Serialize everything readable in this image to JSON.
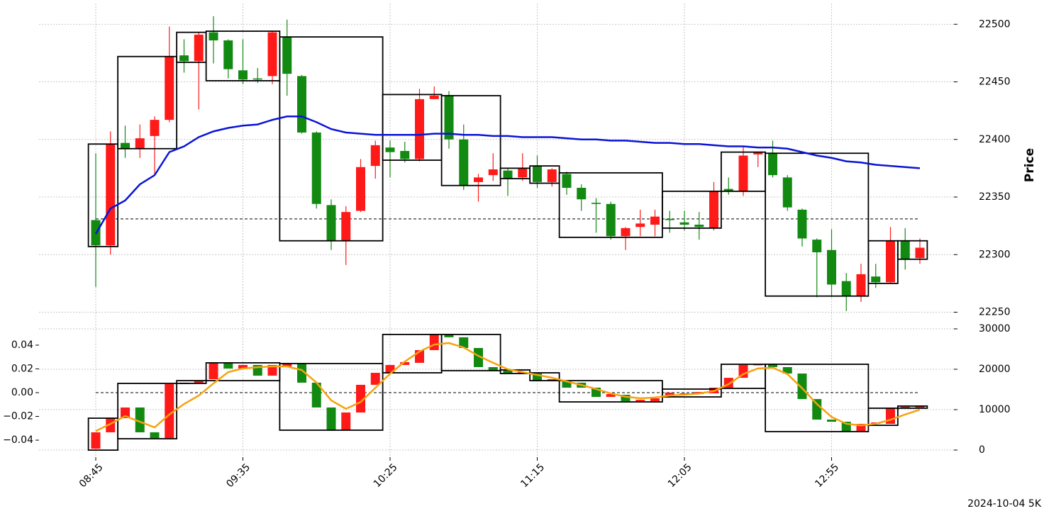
{
  "chart_data": [
    {
      "type": "candlestick",
      "ylabel": "Price",
      "ylim": [
        22238,
        22518
      ],
      "yticks": [
        22250,
        22300,
        22350,
        22400,
        22450,
        22500
      ],
      "grid": true,
      "up_color": "#ff1a1a",
      "down_color": "#128a12",
      "open": [
        22330,
        22308,
        22397,
        22392,
        22403,
        22417,
        22473,
        22468,
        22493,
        22486,
        22460,
        22453,
        22455,
        22489,
        22455,
        22406,
        22343,
        22312,
        22338,
        22377,
        22393,
        22390,
        22383,
        22435,
        22438,
        22400,
        22363,
        22369,
        22373,
        22367,
        22377,
        22363,
        22370,
        22358,
        22345,
        22344,
        22316,
        22324,
        22326,
        22331,
        22328,
        22326,
        22323,
        22357,
        22355,
        22387,
        22388,
        22367,
        22339,
        22313,
        22304,
        22277,
        22264,
        22281,
        22276,
        22312,
        22297
      ],
      "high": [
        22388,
        22407,
        22412,
        22413,
        22420,
        22498,
        22487,
        22493,
        22507,
        22487,
        22487,
        22462,
        22494,
        22504,
        22456,
        22407,
        22348,
        22342,
        22383,
        22399,
        22399,
        22398,
        22444,
        22446,
        22442,
        22413,
        22370,
        22388,
        22375,
        22388,
        22386,
        22375,
        22372,
        22361,
        22349,
        22346,
        22324,
        22339,
        22339,
        22338,
        22338,
        22337,
        22363,
        22367,
        22394,
        22389,
        22399,
        22369,
        22340,
        22314,
        22322,
        22284,
        22292,
        22292,
        22324,
        22323,
        22314
      ],
      "low": [
        22272,
        22300,
        22384,
        22384,
        22370,
        22415,
        22458,
        22426,
        22466,
        22453,
        22448,
        22449,
        22448,
        22438,
        22405,
        22340,
        22304,
        22291,
        22337,
        22366,
        22367,
        22380,
        22381,
        22435,
        22392,
        22356,
        22346,
        22364,
        22351,
        22364,
        22358,
        22359,
        22352,
        22338,
        22319,
        22313,
        22304,
        22316,
        22316,
        22319,
        22321,
        22313,
        22321,
        22352,
        22351,
        22376,
        22367,
        22338,
        22307,
        22263,
        22263,
        22251,
        22259,
        22271,
        22275,
        22287,
        22292
      ],
      "close": [
        22308,
        22396,
        22392,
        22401,
        22417,
        22472,
        22468,
        22491,
        22486,
        22461,
        22452,
        22452,
        22493,
        22457,
        22406,
        22344,
        22312,
        22337,
        22376,
        22395,
        22389,
        22383,
        22435,
        22438,
        22400,
        22360,
        22367,
        22374,
        22366,
        22375,
        22363,
        22374,
        22358,
        22348,
        22344,
        22316,
        22323,
        22327,
        22333,
        22330,
        22326,
        22324,
        22355,
        22355,
        22386,
        22389,
        22369,
        22341,
        22314,
        22302,
        22274,
        22264,
        22283,
        22276,
        22312,
        22296,
        22306
      ],
      "ma": {
        "color": "#0a14d6",
        "values": [
          22318,
          22340,
          22347,
          22361,
          22369,
          22389,
          22394,
          22402,
          22407,
          22410,
          22412,
          22413,
          22417,
          22420,
          22420,
          22415,
          22409,
          22406,
          22405,
          22404,
          22404,
          22404,
          22404,
          22405,
          22405,
          22404,
          22404,
          22403,
          22403,
          22402,
          22402,
          22402,
          22401,
          22400,
          22400,
          22399,
          22399,
          22398,
          22397,
          22397,
          22396,
          22396,
          22395,
          22394,
          22394,
          22393,
          22393,
          22392,
          22389,
          22386,
          22384,
          22381,
          22380,
          22378,
          22377,
          22376,
          22375
        ]
      },
      "reference_line": 22331,
      "boxes": [
        {
          "start": 0,
          "end": 1,
          "high": 22396,
          "low": 22307
        },
        {
          "start": 2,
          "end": 5,
          "high": 22472,
          "low": 22392
        },
        {
          "start": 6,
          "end": 7,
          "high": 22493,
          "low": 22467
        },
        {
          "start": 8,
          "end": 12,
          "high": 22494,
          "low": 22451
        },
        {
          "start": 13,
          "end": 19,
          "high": 22489,
          "low": 22312
        },
        {
          "start": 20,
          "end": 23,
          "high": 22439,
          "low": 22382
        },
        {
          "start": 24,
          "end": 27,
          "high": 22438,
          "low": 22360
        },
        {
          "start": 28,
          "end": 29,
          "high": 22375,
          "low": 22366
        },
        {
          "start": 30,
          "end": 31,
          "high": 22377,
          "low": 22362
        },
        {
          "start": 32,
          "end": 38,
          "high": 22371,
          "low": 22315
        },
        {
          "start": 39,
          "end": 42,
          "high": 22355,
          "low": 22323
        },
        {
          "start": 43,
          "end": 45,
          "high": 22389,
          "low": 22355
        },
        {
          "start": 46,
          "end": 52,
          "high": 22388,
          "low": 22264
        },
        {
          "start": 53,
          "end": 54,
          "high": 22312,
          "low": 22275
        },
        {
          "start": 55,
          "end": 56,
          "high": 22312,
          "low": 22296
        }
      ]
    },
    {
      "type": "candlestick",
      "categories": [
        "08:45",
        null,
        null,
        null,
        null,
        null,
        null,
        null,
        null,
        null,
        "09:35",
        null,
        null,
        null,
        null,
        null,
        null,
        null,
        null,
        null,
        "10:25",
        null,
        null,
        null,
        null,
        null,
        null,
        null,
        null,
        null,
        "11:15",
        null,
        null,
        null,
        null,
        null,
        null,
        null,
        null,
        null,
        "12:05",
        null,
        null,
        null,
        null,
        null,
        null,
        null,
        null,
        null,
        "12:55",
        null,
        null,
        null,
        null,
        null,
        null
      ],
      "ylim": [
        -0.0543,
        0.0549
      ],
      "yticks": [
        {
          "value": -0.04,
          "label": "−0.04"
        },
        {
          "value": -0.02,
          "label": "−0.02"
        },
        {
          "value": 0,
          "label": "0.00"
        },
        0.02,
        0.04
      ],
      "y2lim": [
        -1754,
        30351
      ],
      "y2ticks": [
        0,
        10000,
        20000,
        30000
      ],
      "grid": true,
      "up_color": "#ff1a1a",
      "down_color": "#128a12",
      "open": [
        -0.0472,
        -0.0334,
        -0.0215,
        -0.0125,
        -0.0334,
        -0.0382,
        0.0072,
        0.0084,
        0.0113,
        0.0251,
        0.0203,
        0.0233,
        0.0143,
        0.0221,
        0.0245,
        0.0084,
        -0.0125,
        -0.0316,
        -0.0167,
        0.0066,
        0.0167,
        0.0233,
        0.0251,
        0.0358,
        0.049,
        0.0466,
        0.0376,
        0.0215,
        0.0185,
        0.0161,
        0.0161,
        0.0101,
        0.0101,
        0.0084,
        0.0042,
        -0.0036,
        -0.0018,
        -0.0072,
        -0.0072,
        -0.0024,
        -0.0018,
        -0.0012,
        -0.0006,
        0.0042,
        0.0125,
        0.0233,
        0.0239,
        0.0215,
        0.0161,
        -0.0054,
        -0.0227,
        -0.0245,
        -0.0328,
        -0.0263,
        -0.0263,
        -0.0131,
        -0.0125
      ],
      "close": [
        -0.0334,
        -0.0215,
        -0.0125,
        -0.0334,
        -0.0382,
        0.0072,
        0.0084,
        0.0096,
        0.0251,
        0.0203,
        0.0233,
        0.0143,
        0.0233,
        0.0245,
        0.0084,
        -0.0125,
        -0.0316,
        -0.0167,
        0.0066,
        0.0167,
        0.0233,
        0.0257,
        0.0358,
        0.049,
        0.0466,
        0.0376,
        0.0215,
        0.0185,
        0.0161,
        0.0173,
        0.0101,
        0.0113,
        0.0042,
        0.0042,
        -0.0036,
        -0.0012,
        -0.0072,
        -0.006,
        -0.0048,
        0,
        -0.0006,
        0.0006,
        0.0042,
        0.0125,
        0.0233,
        0.0239,
        0.0215,
        0.0161,
        -0.0054,
        -0.0227,
        -0.0245,
        -0.0328,
        -0.0263,
        -0.0251,
        -0.0131,
        -0.0119,
        -0.0113
      ],
      "line": {
        "color": "#f5a30f",
        "axis": "y2",
        "values": [
          4700,
          6500,
          8400,
          7000,
          5600,
          8800,
          11400,
          13500,
          16500,
          19300,
          20200,
          20500,
          20700,
          20700,
          19800,
          16700,
          12300,
          10200,
          11900,
          15400,
          18900,
          21900,
          24400,
          26100,
          26500,
          25400,
          23300,
          21600,
          20000,
          19300,
          18600,
          17900,
          17000,
          16100,
          15100,
          14000,
          13200,
          12800,
          13000,
          13500,
          13700,
          14000,
          14600,
          16300,
          18800,
          20200,
          20400,
          18800,
          15300,
          11400,
          8200,
          6500,
          6100,
          6500,
          7500,
          8800,
          10000
        ]
      },
      "reference_line": 0,
      "boxes": [
        {
          "start": 0,
          "end": 1,
          "high": -0.0215,
          "low": -0.0484
        },
        {
          "start": 2,
          "end": 5,
          "high": 0.0078,
          "low": -0.0388
        },
        {
          "start": 6,
          "end": 7,
          "high": 0.0101,
          "low": 0.0078
        },
        {
          "start": 8,
          "end": 12,
          "high": 0.0251,
          "low": 0.0101
        },
        {
          "start": 13,
          "end": 19,
          "high": 0.0245,
          "low": -0.0316
        },
        {
          "start": 20,
          "end": 23,
          "high": 0.049,
          "low": 0.0167
        },
        {
          "start": 24,
          "end": 27,
          "high": 0.049,
          "low": 0.0185
        },
        {
          "start": 28,
          "end": 29,
          "high": 0.0191,
          "low": 0.0161
        },
        {
          "start": 30,
          "end": 31,
          "high": 0.0167,
          "low": 0.0101
        },
        {
          "start": 32,
          "end": 38,
          "high": 0.0101,
          "low": -0.0078
        },
        {
          "start": 39,
          "end": 42,
          "high": 0.003,
          "low": -0.0036
        },
        {
          "start": 43,
          "end": 45,
          "high": 0.0239,
          "low": 0.0036
        },
        {
          "start": 46,
          "end": 52,
          "high": 0.0239,
          "low": -0.0328
        },
        {
          "start": 53,
          "end": 54,
          "high": -0.0131,
          "low": -0.0275
        },
        {
          "start": 55,
          "end": 56,
          "high": -0.0113,
          "low": -0.0131
        }
      ]
    }
  ],
  "footnote": "2024-10-04 5K"
}
